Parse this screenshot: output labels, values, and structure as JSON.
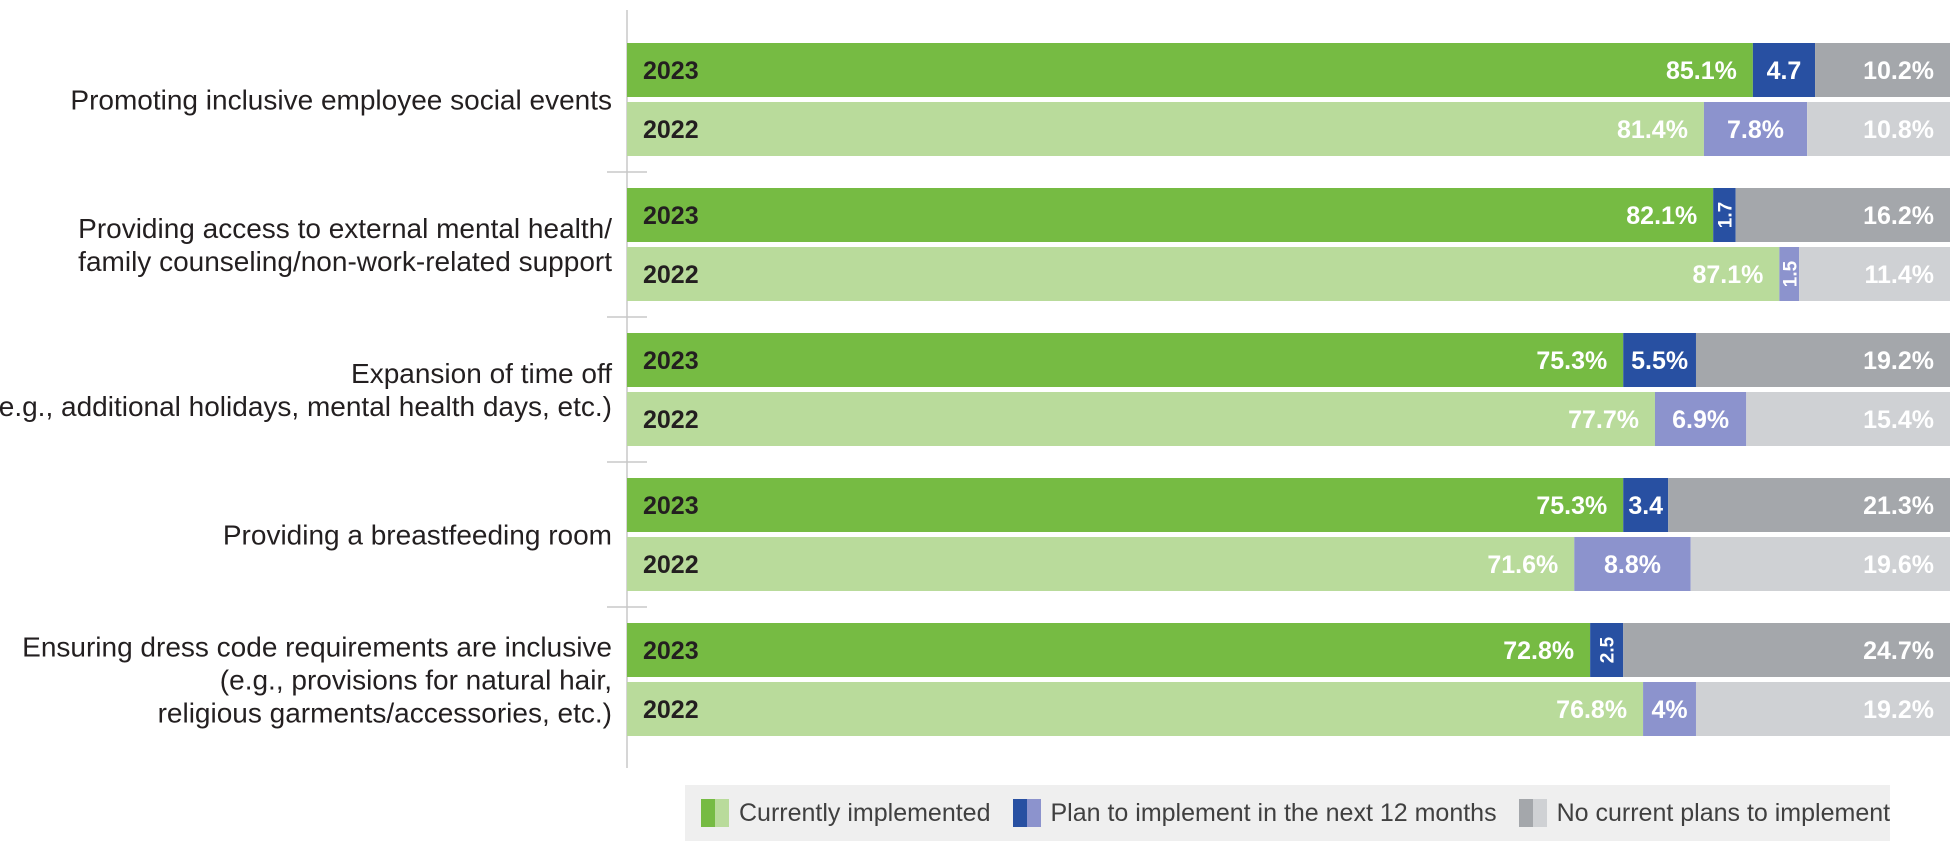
{
  "chart_data": {
    "type": "bar",
    "orientation": "horizontal",
    "stacked": true,
    "xlim": [
      0,
      100
    ],
    "unit": "%",
    "series": [
      {
        "name": "Currently implemented",
        "color_2023": "#76bb43",
        "color_2022": "#b9db9b"
      },
      {
        "name": "Plan to implement in the next 12 months",
        "color_2023": "#2850a2",
        "color_2022": "#8c93cd"
      },
      {
        "name": "No current plans to implement",
        "color_2023": "#a4a7ab",
        "color_2022": "#cfd1d4"
      }
    ],
    "categories": [
      {
        "label_lines": [
          "Promoting inclusive employee social events"
        ],
        "rows": [
          {
            "year": "2023",
            "values": [
              85.1,
              4.7,
              10.2
            ],
            "labels": [
              "85.1%",
              "4.7",
              "10.2%"
            ]
          },
          {
            "year": "2022",
            "values": [
              81.4,
              7.8,
              10.8
            ],
            "labels": [
              "81.4%",
              "7.8%",
              "10.8%"
            ]
          }
        ]
      },
      {
        "label_lines": [
          "Providing access to external mental health/",
          "family counseling/non-work-related support"
        ],
        "rows": [
          {
            "year": "2023",
            "values": [
              82.1,
              1.7,
              16.2
            ],
            "labels": [
              "82.1%",
              "1.7",
              "16.2%"
            ]
          },
          {
            "year": "2022",
            "values": [
              87.1,
              1.5,
              11.4
            ],
            "labels": [
              "87.1%",
              "1.5",
              "11.4%"
            ]
          }
        ]
      },
      {
        "label_lines": [
          "Expansion of time off",
          "(e.g., additional holidays, mental health days, etc.)"
        ],
        "rows": [
          {
            "year": "2023",
            "values": [
              75.3,
              5.5,
              19.2
            ],
            "labels": [
              "75.3%",
              "5.5%",
              "19.2%"
            ]
          },
          {
            "year": "2022",
            "values": [
              77.7,
              6.9,
              15.4
            ],
            "labels": [
              "77.7%",
              "6.9%",
              "15.4%"
            ]
          }
        ]
      },
      {
        "label_lines": [
          "Providing a breastfeeding room"
        ],
        "rows": [
          {
            "year": "2023",
            "values": [
              75.3,
              3.4,
              21.3
            ],
            "labels": [
              "75.3%",
              "3.4",
              "21.3%"
            ]
          },
          {
            "year": "2022",
            "values": [
              71.6,
              8.8,
              19.6
            ],
            "labels": [
              "71.6%",
              "8.8%",
              "19.6%"
            ]
          }
        ]
      },
      {
        "label_lines": [
          "Ensuring dress code requirements are inclusive",
          "(e.g., provisions for natural hair,",
          "religious garments/accessories, etc.)"
        ],
        "rows": [
          {
            "year": "2023",
            "values": [
              72.8,
              2.5,
              24.7
            ],
            "labels": [
              "72.8%",
              "2.5",
              "24.7%"
            ]
          },
          {
            "year": "2022",
            "values": [
              76.8,
              4,
              19.2
            ],
            "labels": [
              "76.8%",
              "4%",
              "19.2%"
            ]
          }
        ]
      }
    ],
    "legend": {
      "position": "bottom",
      "items": [
        "Currently implemented",
        "Plan to implement in the next 12 months",
        "No current plans to implement"
      ]
    }
  }
}
